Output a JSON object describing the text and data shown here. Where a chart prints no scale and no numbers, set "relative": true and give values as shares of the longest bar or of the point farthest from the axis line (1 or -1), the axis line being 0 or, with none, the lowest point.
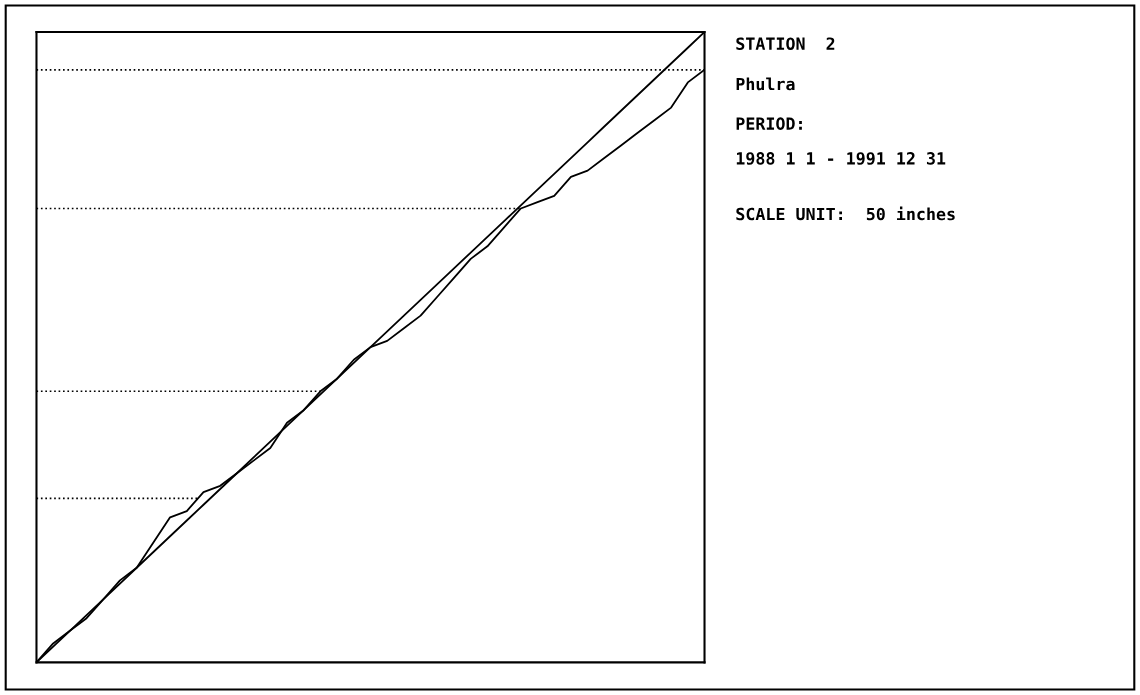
{
  "chart_data": {
    "type": "line",
    "title": "STATION  2",
    "subtitle": "Phulra",
    "annotations": [
      "PERIOD:",
      "1988 1 1 - 1991 12 31",
      "SCALE UNIT:  50 inches"
    ],
    "categories": [
      null,
      null,
      null,
      null,
      null,
      null,
      null,
      null,
      null,
      null,
      null,
      null,
      null,
      null,
      null,
      null,
      null,
      null,
      null,
      null,
      null,
      null,
      null,
      null,
      null,
      null,
      null,
      null,
      null,
      null,
      null,
      null,
      null,
      null,
      null,
      null,
      null,
      null,
      null,
      null,
      null
    ],
    "relative": true,
    "series": [
      {
        "color": "#000000",
        "values": [
          0,
          0.025,
          0.05,
          0.075,
          0.1,
          0.125,
          0.15,
          0.175,
          0.2,
          0.225,
          0.25,
          0.275,
          0.3,
          0.325,
          0.35,
          0.375,
          0.4,
          0.425,
          0.45,
          0.475,
          0.5,
          0.525,
          0.55,
          0.575,
          0.6,
          0.625,
          0.65,
          0.675,
          0.7,
          0.725,
          0.75,
          0.775,
          0.8,
          0.825,
          0.85,
          0.875,
          0.9,
          0.925,
          0.95,
          0.975,
          1
        ]
      },
      {
        "color": "#000000",
        "values": [
          0,
          0.03,
          0.05,
          0.07,
          0.1,
          0.13,
          0.15,
          0.19,
          0.23,
          0.24,
          0.27,
          0.28,
          0.3,
          0.32,
          0.34,
          0.38,
          0.4,
          0.43,
          0.45,
          0.48,
          0.5,
          0.51,
          0.53,
          0.55,
          0.58,
          0.61,
          0.64,
          0.66,
          0.69,
          0.72,
          0.73,
          0.74,
          0.77,
          0.78,
          0.8,
          0.82,
          0.84,
          0.86,
          0.88,
          0.92,
          0.94
        ]
      }
    ],
    "ref_lines": [
      {
        "axis": "y",
        "value": 0.94,
        "color": "#000000",
        "line_style": "dotted"
      },
      {
        "axis": "y",
        "value": 0.72,
        "color": "#000000",
        "line_style": "dotted"
      },
      {
        "axis": "y",
        "value": 0.43,
        "color": "#000000",
        "line_style": "dotted"
      },
      {
        "axis": "y",
        "value": 0.26,
        "color": "#000000",
        "line_style": "dotted"
      }
    ],
    "grid": false,
    "legend": false
  }
}
